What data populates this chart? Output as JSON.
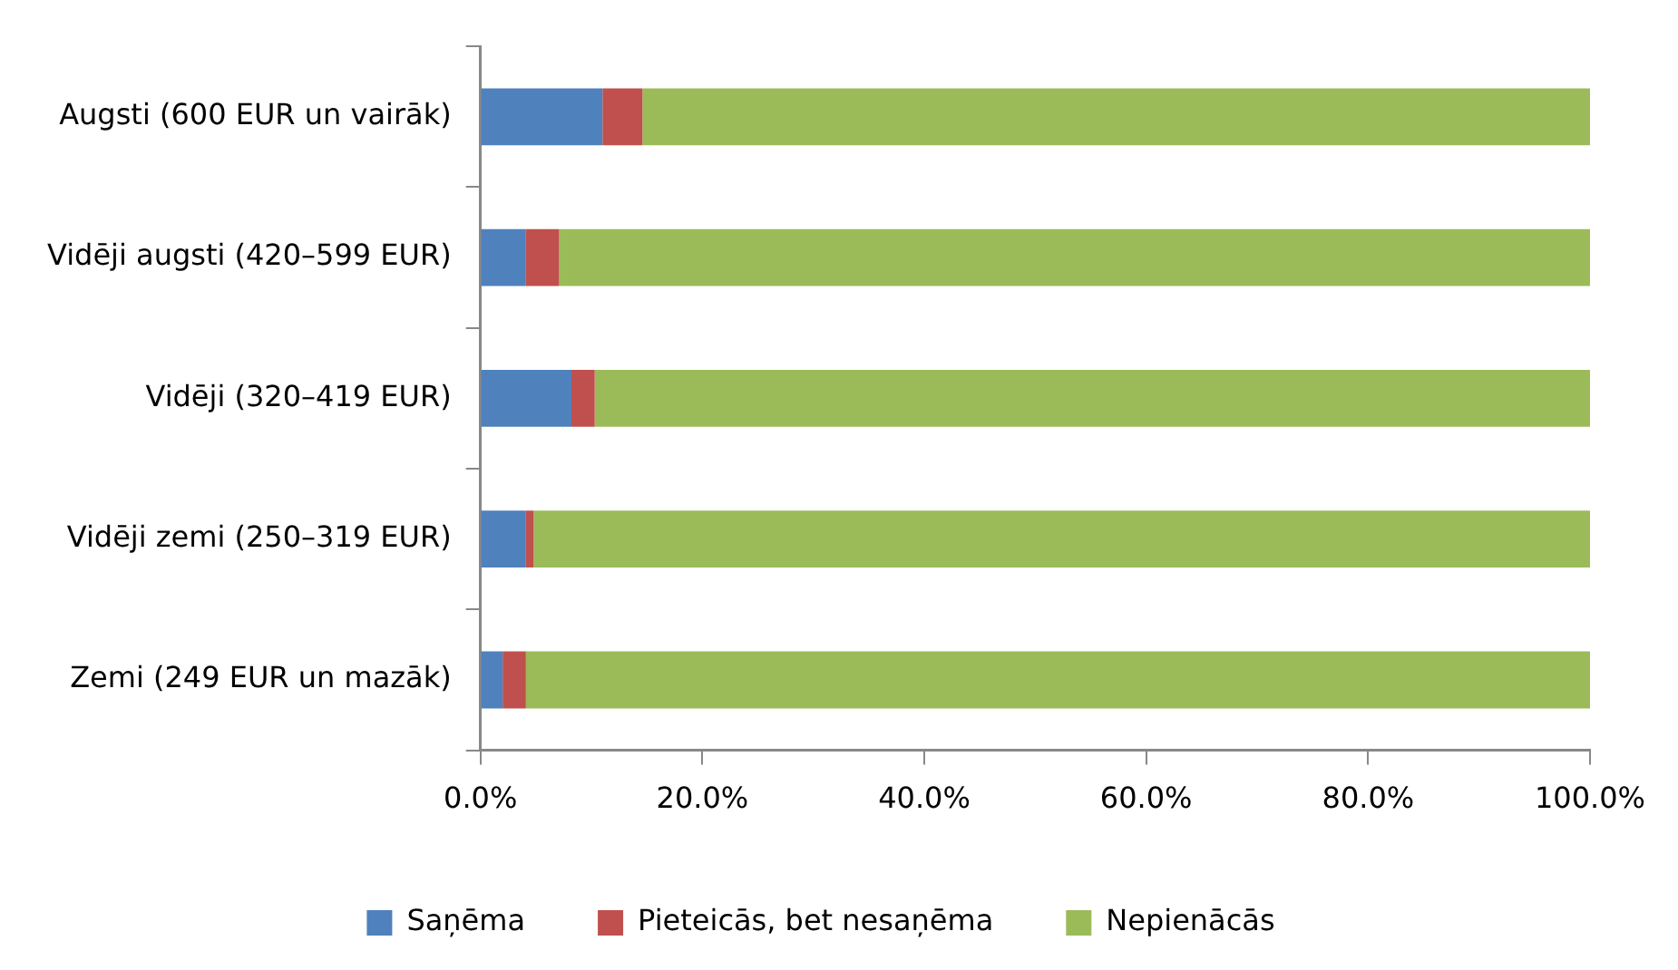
{
  "chart_data": {
    "type": "bar",
    "orientation": "horizontal",
    "stacked": true,
    "categories": [
      "Augsti (600 EUR un vairāk)",
      "Vidēji augsti (420–599 EUR)",
      "Vidēji (320–419 EUR)",
      "Vidēji zemi (250–319 EUR)",
      "Zemi (249 EUR un mazāk)"
    ],
    "series": [
      {
        "name": "Saņēma",
        "color": "#4f81bd",
        "values": [
          11.0,
          4.1,
          8.2,
          4.1,
          2.0
        ]
      },
      {
        "name": "Pieteicās, bet nesaņēma",
        "color": "#c0504d",
        "values": [
          3.6,
          3.0,
          2.1,
          0.7,
          2.1
        ]
      },
      {
        "name": "Nepienācās",
        "color": "#9bbb59",
        "values": [
          85.4,
          92.9,
          89.7,
          95.2,
          95.9
        ]
      }
    ],
    "xlim": [
      0,
      100
    ],
    "xticks": [
      {
        "value": 0,
        "label": "0.0%"
      },
      {
        "value": 20,
        "label": "20.0%"
      },
      {
        "value": 40,
        "label": "40.0%"
      },
      {
        "value": 60,
        "label": "60.0%"
      },
      {
        "value": 80,
        "label": "80.0%"
      },
      {
        "value": 100,
        "label": "100.0%"
      }
    ],
    "grid": false,
    "legend": "bottom"
  }
}
